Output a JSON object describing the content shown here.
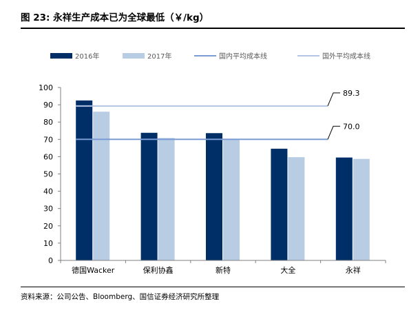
{
  "figure": {
    "title": "图 23:  永祥生产成本已为全球最低（￥/kg）",
    "source": "资料来源：公司公告、Bloomberg、国信证券经济研究所整理"
  },
  "chart_data": {
    "type": "bar",
    "categories": [
      "德国Wacker",
      "保利协鑫",
      "新特",
      "大全",
      "永祥"
    ],
    "series": [
      {
        "name": "2016年",
        "values": [
          92.5,
          73.8,
          73.6,
          64.6,
          59.5
        ],
        "color": "#002f67"
      },
      {
        "name": "2017年",
        "values": [
          86.0,
          70.8,
          70.0,
          59.7,
          58.7
        ],
        "color": "#b8cce4"
      }
    ],
    "reference_lines": [
      {
        "name": "国内平均成本线",
        "value": 70.0,
        "label": "70.0",
        "color": "#7b9bd4"
      },
      {
        "name": "国外平均成本线",
        "value": 89.3,
        "label": "89.3",
        "color": "#b3c5e3"
      }
    ],
    "ylim": [
      0,
      100
    ],
    "yticks": [
      0,
      10,
      20,
      30,
      40,
      50,
      60,
      70,
      80,
      90,
      100
    ],
    "legend_position": "top",
    "grid": false
  }
}
